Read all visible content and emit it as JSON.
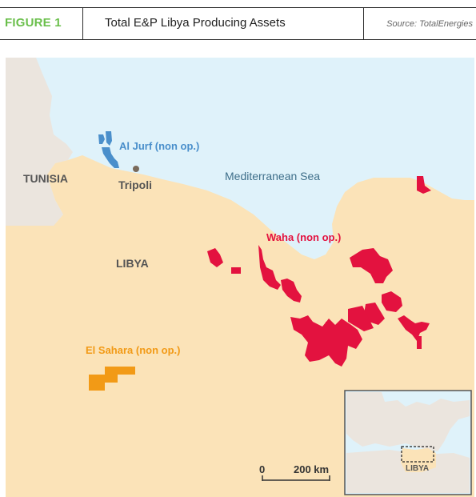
{
  "header": {
    "figure_label": "FIGURE 1",
    "title": "Total E&P Libya Producing Assets",
    "source": "Source: TotalEnergies"
  },
  "map": {
    "labels": {
      "tunisia": "TUNISIA",
      "tripoli": "Tripoli",
      "sea": "Mediterranean Sea",
      "libya": "LIBYA",
      "al_jurf": "Al Jurf (non op.)",
      "waha": "Waha (non op.)",
      "el_sahara": "El Sahara (non op.)"
    },
    "scale_bar": {
      "start": "0",
      "end": "200 km"
    },
    "inset": {
      "label": "LIBYA"
    },
    "colors": {
      "sea": "#dff2fa",
      "land": "#fbe3b8",
      "other_land": "#ebe5de",
      "al_jurf": "#4a8fcb",
      "waha": "#e3123f",
      "el_sahara": "#f29a16",
      "text_dark": "#444444"
    }
  }
}
